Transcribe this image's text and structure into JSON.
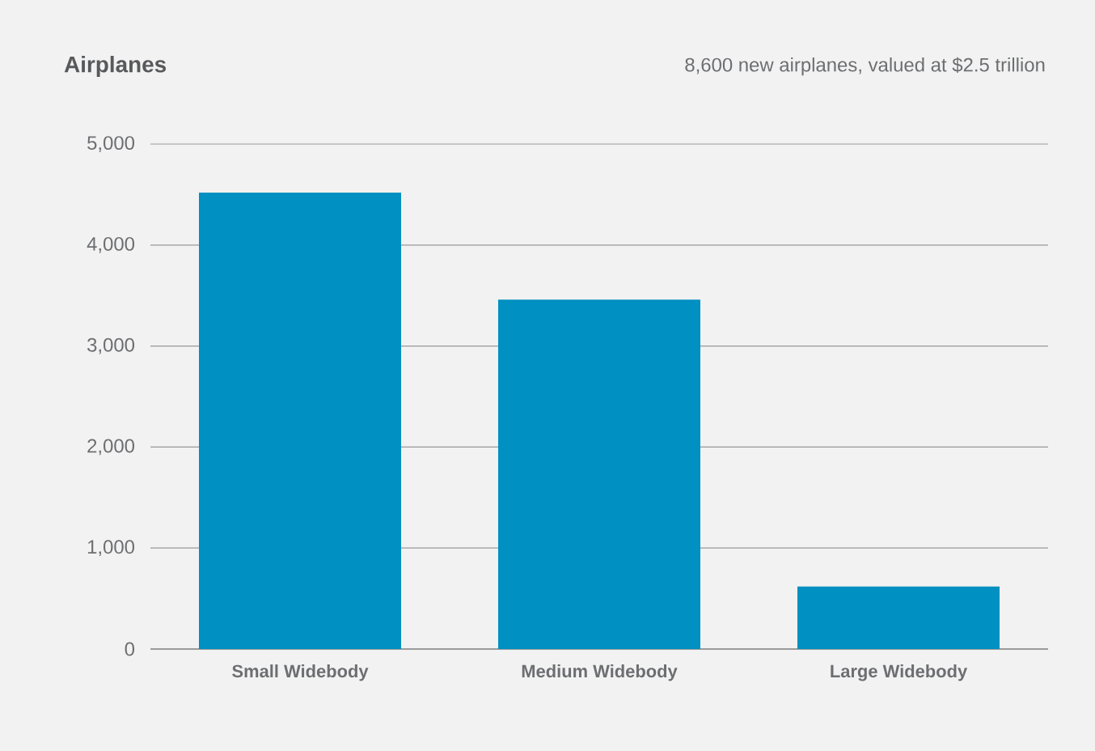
{
  "chart_data": {
    "type": "bar",
    "title": "Airplanes",
    "subtitle": "8,600 new airplanes, valued at $2.5 trillion",
    "categories": [
      "Small Widebody",
      "Medium Widebody",
      "Large Widebody"
    ],
    "values": [
      4520,
      3460,
      620
    ],
    "color": "#0090c1",
    "ylim": [
      0,
      5000
    ],
    "yticks": [
      {
        "value": 0,
        "label": "0"
      },
      {
        "value": 1000,
        "label": "1,000"
      },
      {
        "value": 2000,
        "label": "2,000"
      },
      {
        "value": 3000,
        "label": "3,000"
      },
      {
        "value": 4000,
        "label": "4,000"
      },
      {
        "value": 5000,
        "label": "5,000"
      }
    ],
    "grid": "y"
  }
}
